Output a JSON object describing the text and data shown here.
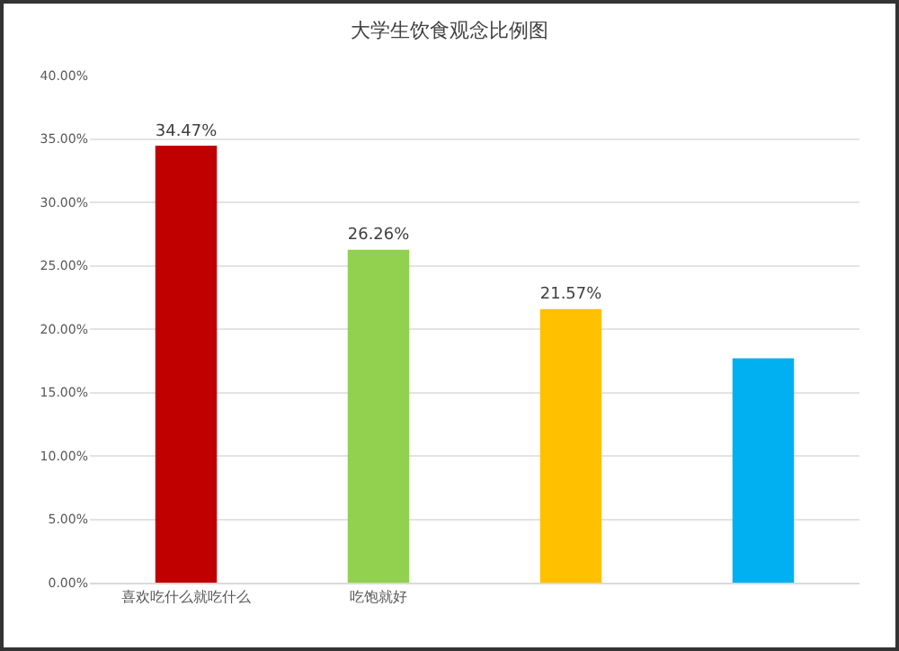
{
  "chart_data": {
    "type": "bar",
    "title": "大学生饮食观念比例图",
    "categories": [
      "喜欢吃什么就吃什么",
      "吃饱就好",
      null,
      null
    ],
    "values": [
      34.47,
      26.26,
      21.57,
      17.7
    ],
    "colors": [
      "#c00000",
      "#92d050",
      "#ffc000",
      "#00b0f0"
    ],
    "value_labels": [
      "34.47%",
      "26.26%",
      "21.57%",
      null
    ],
    "ylim": [
      0,
      40
    ],
    "yticks": [
      {
        "value": 0,
        "label": "0.00%"
      },
      {
        "value": 5,
        "label": "5.00%"
      },
      {
        "value": 10,
        "label": "10.00%"
      },
      {
        "value": 15,
        "label": "15.00%"
      },
      {
        "value": 20,
        "label": "20.00%"
      },
      {
        "value": 25,
        "label": "25.00%"
      },
      {
        "value": 30,
        "label": "30.00%"
      },
      {
        "value": 35,
        "label": "35.00%"
      },
      {
        "value": 40,
        "label": "40.00%"
      }
    ],
    "grid": "y"
  }
}
